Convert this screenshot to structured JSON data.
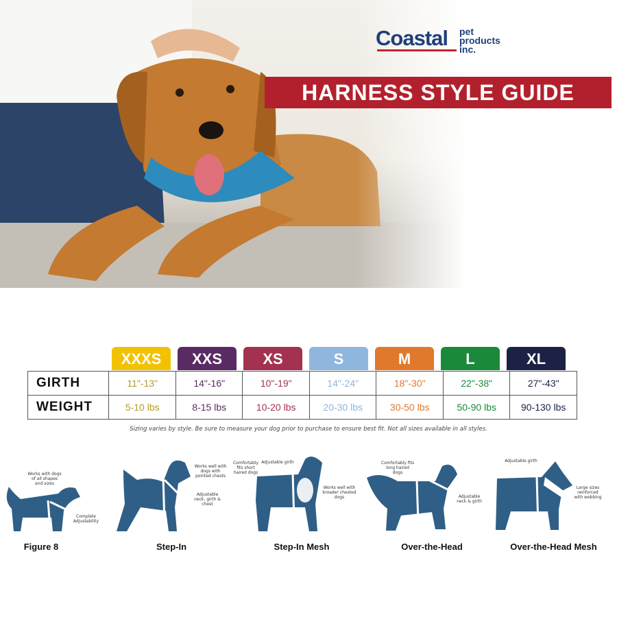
{
  "brand": {
    "logo_main": "Coastal",
    "logo_sub": [
      "pet",
      "products",
      "inc."
    ]
  },
  "banner": {
    "title": "HARNESS STYLE GUIDE"
  },
  "colors": {
    "banner": "#b3202d",
    "dog": "#2f5f86",
    "logo": "#1f3f7a"
  },
  "photo": {
    "description_icon": "puppy-photo"
  },
  "size_chart": {
    "row_labels": [
      "GIRTH",
      "WEIGHT"
    ],
    "sizes": [
      {
        "size": "XXXS",
        "color": "#f2c200",
        "text_color": "#b49a2a",
        "girth": "11\"-13\"",
        "weight": "5-10 lbs"
      },
      {
        "size": "XXS",
        "color": "#5a2a64",
        "text_color": "#5a2a64",
        "girth": "14\"-16\"",
        "weight": "8-15 lbs"
      },
      {
        "size": "XS",
        "color": "#a2324f",
        "text_color": "#a2324f",
        "girth": "10\"-19\"",
        "weight": "10-20 lbs"
      },
      {
        "size": "S",
        "color": "#8fb6dc",
        "text_color": "#8fb6dc",
        "girth": "14\"-24\"",
        "weight": "20-30 lbs"
      },
      {
        "size": "M",
        "color": "#e0792c",
        "text_color": "#e0792c",
        "girth": "18\"-30\"",
        "weight": "30-50 lbs"
      },
      {
        "size": "L",
        "color": "#1a8a3a",
        "text_color": "#1a8a3a",
        "girth": "22\"-38\"",
        "weight": "50-90 lbs"
      },
      {
        "size": "XL",
        "color": "#1b2245",
        "text_color": "#1b2245",
        "girth": "27\"-43\"",
        "weight": "90-130 lbs"
      }
    ],
    "note": "Sizing varies by style. Be sure to measure your dog prior to purchase to ensure best fit. Not all sizes available in all styles."
  },
  "styles": [
    {
      "name": "Figure 8",
      "notes": [
        "Works with dogs of all shapes and sizes",
        "Complete Adjustability"
      ]
    },
    {
      "name": "Step-In",
      "notes": [
        "Works well with dogs with pointed chests",
        "Adjustable neck, girth & chest"
      ]
    },
    {
      "name": "Step-In Mesh",
      "notes": [
        "Comfortably fits short haired dogs",
        "Adjustable girth",
        "Works well with broader chested dogs"
      ]
    },
    {
      "name": "Over-the-Head",
      "notes": [
        "Comfortably fits long haired dogs",
        "Adjustable neck & girth"
      ]
    },
    {
      "name": "Over-the-Head Mesh",
      "notes": [
        "Adjustable girth",
        "Large sizes reinforced with webbing"
      ]
    }
  ]
}
